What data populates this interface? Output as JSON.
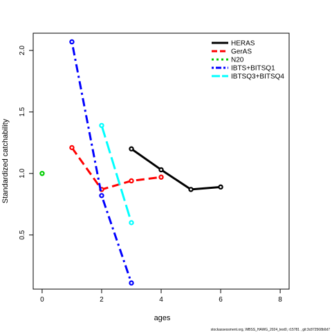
{
  "chart_data": {
    "type": "line",
    "xlabel": "ages",
    "ylabel": "Standardized catchability",
    "xlim": [
      -0.3,
      8.3
    ],
    "ylim": [
      0.06,
      2.14
    ],
    "xticks": [
      "0",
      "2",
      "4",
      "6",
      "8"
    ],
    "yticks": [
      "0.5",
      "1.0",
      "1.5",
      "2.0"
    ],
    "grid": false,
    "legend_position": "top-right",
    "series": [
      {
        "name": "HERAS",
        "color": "#000000",
        "dash": "solid",
        "x": [
          3,
          4,
          5,
          6
        ],
        "y": [
          1.2,
          1.03,
          0.87,
          0.89
        ]
      },
      {
        "name": "GerAS",
        "color": "#ff0000",
        "dash": "dashed",
        "x": [
          1,
          2,
          3,
          4
        ],
        "y": [
          1.21,
          0.87,
          0.94,
          0.97
        ]
      },
      {
        "name": "N20",
        "color": "#00cd00",
        "dash": "dotted",
        "x": [
          0
        ],
        "y": [
          1.0
        ]
      },
      {
        "name": "IBTS+BITSQ1",
        "color": "#0000ff",
        "dash": "dotdash",
        "x": [
          1,
          2,
          3
        ],
        "y": [
          2.07,
          0.82,
          0.11
        ]
      },
      {
        "name": "IBTSQ3+BITSQ4",
        "color": "#00ffff",
        "dash": "longdash",
        "x": [
          2,
          3
        ],
        "y": [
          1.39,
          0.6
        ]
      }
    ]
  },
  "footer": "stockassessment.org, WBSS_HAWG_2024_test0, r15781 , git:3c872568b0d7"
}
